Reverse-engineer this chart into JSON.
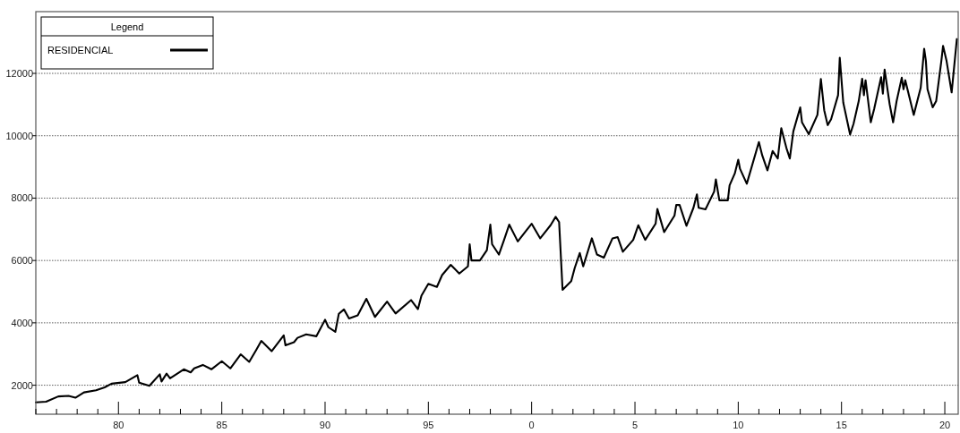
{
  "chart_data": {
    "type": "line",
    "legend_title": "Legend",
    "legend": "top left",
    "grid": "y",
    "line_style": "solid",
    "xlim": [
      "1976-01",
      "2020-08-25"
    ],
    "xticks": [
      {
        "value": "1976",
        "label": null
      },
      {
        "value": "1977",
        "label": null
      },
      {
        "value": "1978",
        "label": null
      },
      {
        "value": "1979",
        "label": null
      },
      {
        "value": "1980",
        "label": "80"
      },
      {
        "value": "1981",
        "label": null
      },
      {
        "value": "1982",
        "label": null
      },
      {
        "value": "1983",
        "label": null
      },
      {
        "value": "1984",
        "label": null
      },
      {
        "value": "1985",
        "label": "85"
      },
      {
        "value": "1986",
        "label": null
      },
      {
        "value": "1987",
        "label": null
      },
      {
        "value": "1988",
        "label": null
      },
      {
        "value": "1989",
        "label": null
      },
      {
        "value": "1990",
        "label": "90"
      },
      {
        "value": "1991",
        "label": null
      },
      {
        "value": "1992",
        "label": null
      },
      {
        "value": "1993",
        "label": null
      },
      {
        "value": "1994",
        "label": null
      },
      {
        "value": "1995",
        "label": "95"
      },
      {
        "value": "1996",
        "label": null
      },
      {
        "value": "1997",
        "label": null
      },
      {
        "value": "1998",
        "label": null
      },
      {
        "value": "1999",
        "label": null
      },
      {
        "value": "2000",
        "label": "0"
      },
      {
        "value": "2001",
        "label": null
      },
      {
        "value": "2002",
        "label": null
      },
      {
        "value": "2003",
        "label": null
      },
      {
        "value": "2004",
        "label": null
      },
      {
        "value": "2005",
        "label": "5"
      },
      {
        "value": "2006",
        "label": null
      },
      {
        "value": "2007",
        "label": null
      },
      {
        "value": "2008",
        "label": null
      },
      {
        "value": "2009",
        "label": null
      },
      {
        "value": "2010",
        "label": "10"
      },
      {
        "value": "2011",
        "label": null
      },
      {
        "value": "2012",
        "label": null
      },
      {
        "value": "2013",
        "label": null
      },
      {
        "value": "2014",
        "label": null
      },
      {
        "value": "2015",
        "label": "15"
      },
      {
        "value": "2016",
        "label": null
      },
      {
        "value": "2017",
        "label": null
      },
      {
        "value": "2018",
        "label": null
      },
      {
        "value": "2019",
        "label": null
      },
      {
        "value": "2020",
        "label": "20"
      }
    ],
    "ylim": [
      1070,
      13980
    ],
    "yticks": [
      2000,
      4000,
      6000,
      8000,
      10000,
      12000
    ],
    "series": [
      {
        "name": "RESIDENCIAL",
        "color": "#000000",
        "x": [
          "1976-01",
          "1976-07",
          "1977-02",
          "1977-08",
          "1977-12",
          "1978-05",
          "1978-12",
          "1979-05",
          "1979-09",
          "1980-05",
          "1980-12",
          "1981-01",
          "1981-07",
          "1982-01",
          "1982-02",
          "1982-05",
          "1982-07",
          "1982-12",
          "1983-03",
          "1983-07",
          "1983-09",
          "1984-02",
          "1984-07",
          "1985-01",
          "1985-06",
          "1985-12",
          "1986-05",
          "1986-09",
          "1986-12",
          "1987-06",
          "1988-01",
          "1988-02",
          "1988-07",
          "1988-09",
          "1989-02",
          "1989-08",
          "1990-01",
          "1990-03",
          "1990-07",
          "1990-09",
          "1990-12",
          "1991-03",
          "1991-08",
          "1992-01",
          "1992-06",
          "1993-01",
          "1993-06",
          "1994-03",
          "1994-07",
          "1994-09",
          "1995-01",
          "1995-06",
          "1995-09",
          "1996-02",
          "1996-07",
          "1996-12",
          "1997-01",
          "1997-02",
          "1997-07",
          "1997-11",
          "1998-01",
          "1998-02",
          "1998-06",
          "1998-09",
          "1998-12",
          "1999-05",
          "2000-01",
          "2000-06",
          "2000-12",
          "2001-03",
          "2001-05",
          "2001-07",
          "2001-12",
          "2002-02",
          "2002-05",
          "2002-07",
          "2002-12",
          "2003-03",
          "2003-07",
          "2003-12",
          "2004-03",
          "2004-06",
          "2004-12",
          "2005-03",
          "2005-07",
          "2006-01",
          "2006-02",
          "2006-06",
          "2006-12",
          "2007-01",
          "2007-03",
          "2007-07",
          "2007-11",
          "2008-01",
          "2008-02",
          "2008-06",
          "2008-11",
          "2008-12",
          "2009-02",
          "2009-07",
          "2009-08",
          "2009-11",
          "2010-01",
          "2010-02",
          "2010-06",
          "2011-01",
          "2011-03",
          "2011-06",
          "2011-09",
          "2011-12",
          "2012-02",
          "2012-05",
          "2012-07",
          "2012-09",
          "2013-01",
          "2013-02",
          "2013-06",
          "2013-11",
          "2014-01",
          "2014-03",
          "2014-05",
          "2014-07",
          "2014-11",
          "2014-12",
          "2015-02",
          "2015-06",
          "2015-08",
          "2015-11",
          "2016-01",
          "2016-02",
          "2016-03",
          "2016-06",
          "2016-08",
          "2016-12",
          "2017-01",
          "2017-02",
          "2017-05",
          "2017-07",
          "2017-09",
          "2017-12",
          "2018-01",
          "2018-02",
          "2018-07",
          "2018-11",
          "2019-01",
          "2019-02",
          "2019-03",
          "2019-06",
          "2019-08",
          "2019-11",
          "2019-12",
          "2020-02",
          "2020-05",
          "2020-08"
        ],
        "values": [
          1450,
          1470,
          1640,
          1660,
          1600,
          1770,
          1840,
          1930,
          2050,
          2100,
          2320,
          2080,
          1980,
          2350,
          2120,
          2370,
          2220,
          2400,
          2510,
          2410,
          2540,
          2650,
          2510,
          2770,
          2540,
          2990,
          2750,
          3130,
          3420,
          3090,
          3600,
          3280,
          3380,
          3520,
          3630,
          3570,
          4100,
          3860,
          3710,
          4290,
          4430,
          4140,
          4240,
          4770,
          4190,
          4680,
          4300,
          4730,
          4440,
          4870,
          5250,
          5150,
          5530,
          5860,
          5580,
          5810,
          6520,
          6000,
          6000,
          6330,
          7150,
          6520,
          6190,
          6660,
          7150,
          6610,
          7180,
          6710,
          7130,
          7400,
          7230,
          5060,
          5340,
          5760,
          6240,
          5810,
          6710,
          6190,
          6090,
          6710,
          6750,
          6280,
          6660,
          7130,
          6660,
          7180,
          7650,
          6910,
          7440,
          7780,
          7780,
          7110,
          7690,
          8120,
          7690,
          7640,
          8210,
          8600,
          7930,
          7930,
          8410,
          8790,
          9230,
          8940,
          8460,
          9800,
          9370,
          8890,
          9510,
          9270,
          10240,
          9610,
          9270,
          10140,
          10910,
          10430,
          10050,
          10670,
          11820,
          10820,
          10340,
          10530,
          11300,
          12500,
          11060,
          10040,
          10380,
          11110,
          11830,
          11300,
          11780,
          10430,
          10870,
          11880,
          11350,
          12120,
          11010,
          10430,
          11110,
          11860,
          11490,
          11780,
          10670,
          11540,
          12790,
          12400,
          11490,
          10910,
          11110,
          12400,
          12880,
          12400,
          11390,
          13100
        ]
      }
    ]
  }
}
